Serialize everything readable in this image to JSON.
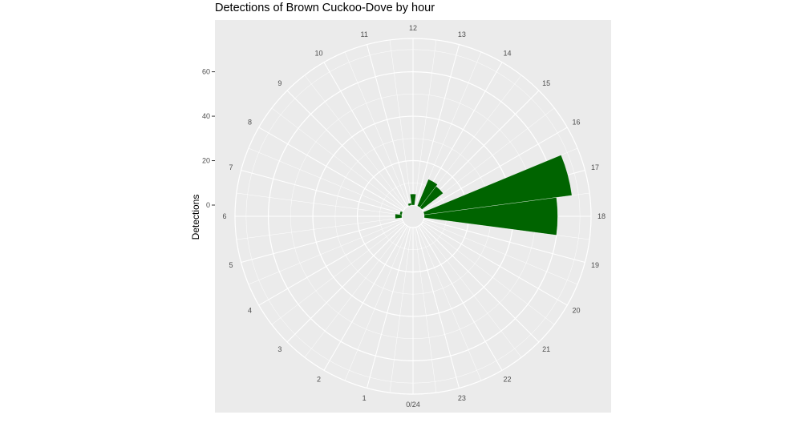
{
  "chart_data": {
    "type": "bar",
    "coord": "polar",
    "title": "Detections of Brown Cuckoo-Dove by hour",
    "ylabel": "Detections",
    "xlabel": "",
    "hour_labels": [
      "0/24",
      "1",
      "2",
      "3",
      "4",
      "5",
      "6",
      "7",
      "8",
      "9",
      "10",
      "11",
      "12",
      "13",
      "14",
      "15",
      "16",
      "17",
      "18",
      "19",
      "20",
      "21",
      "22",
      "23"
    ],
    "y_ticks": [
      0,
      20,
      40,
      60
    ],
    "ylim": [
      0,
      75
    ],
    "hours": [
      6,
      7,
      11,
      12,
      14,
      15,
      17,
      18
    ],
    "values": [
      3,
      1,
      1,
      5,
      13,
      12,
      67,
      60
    ],
    "bar_color": "#006400",
    "panel_background": "#ebebeb",
    "grid_color": "#ffffff"
  }
}
